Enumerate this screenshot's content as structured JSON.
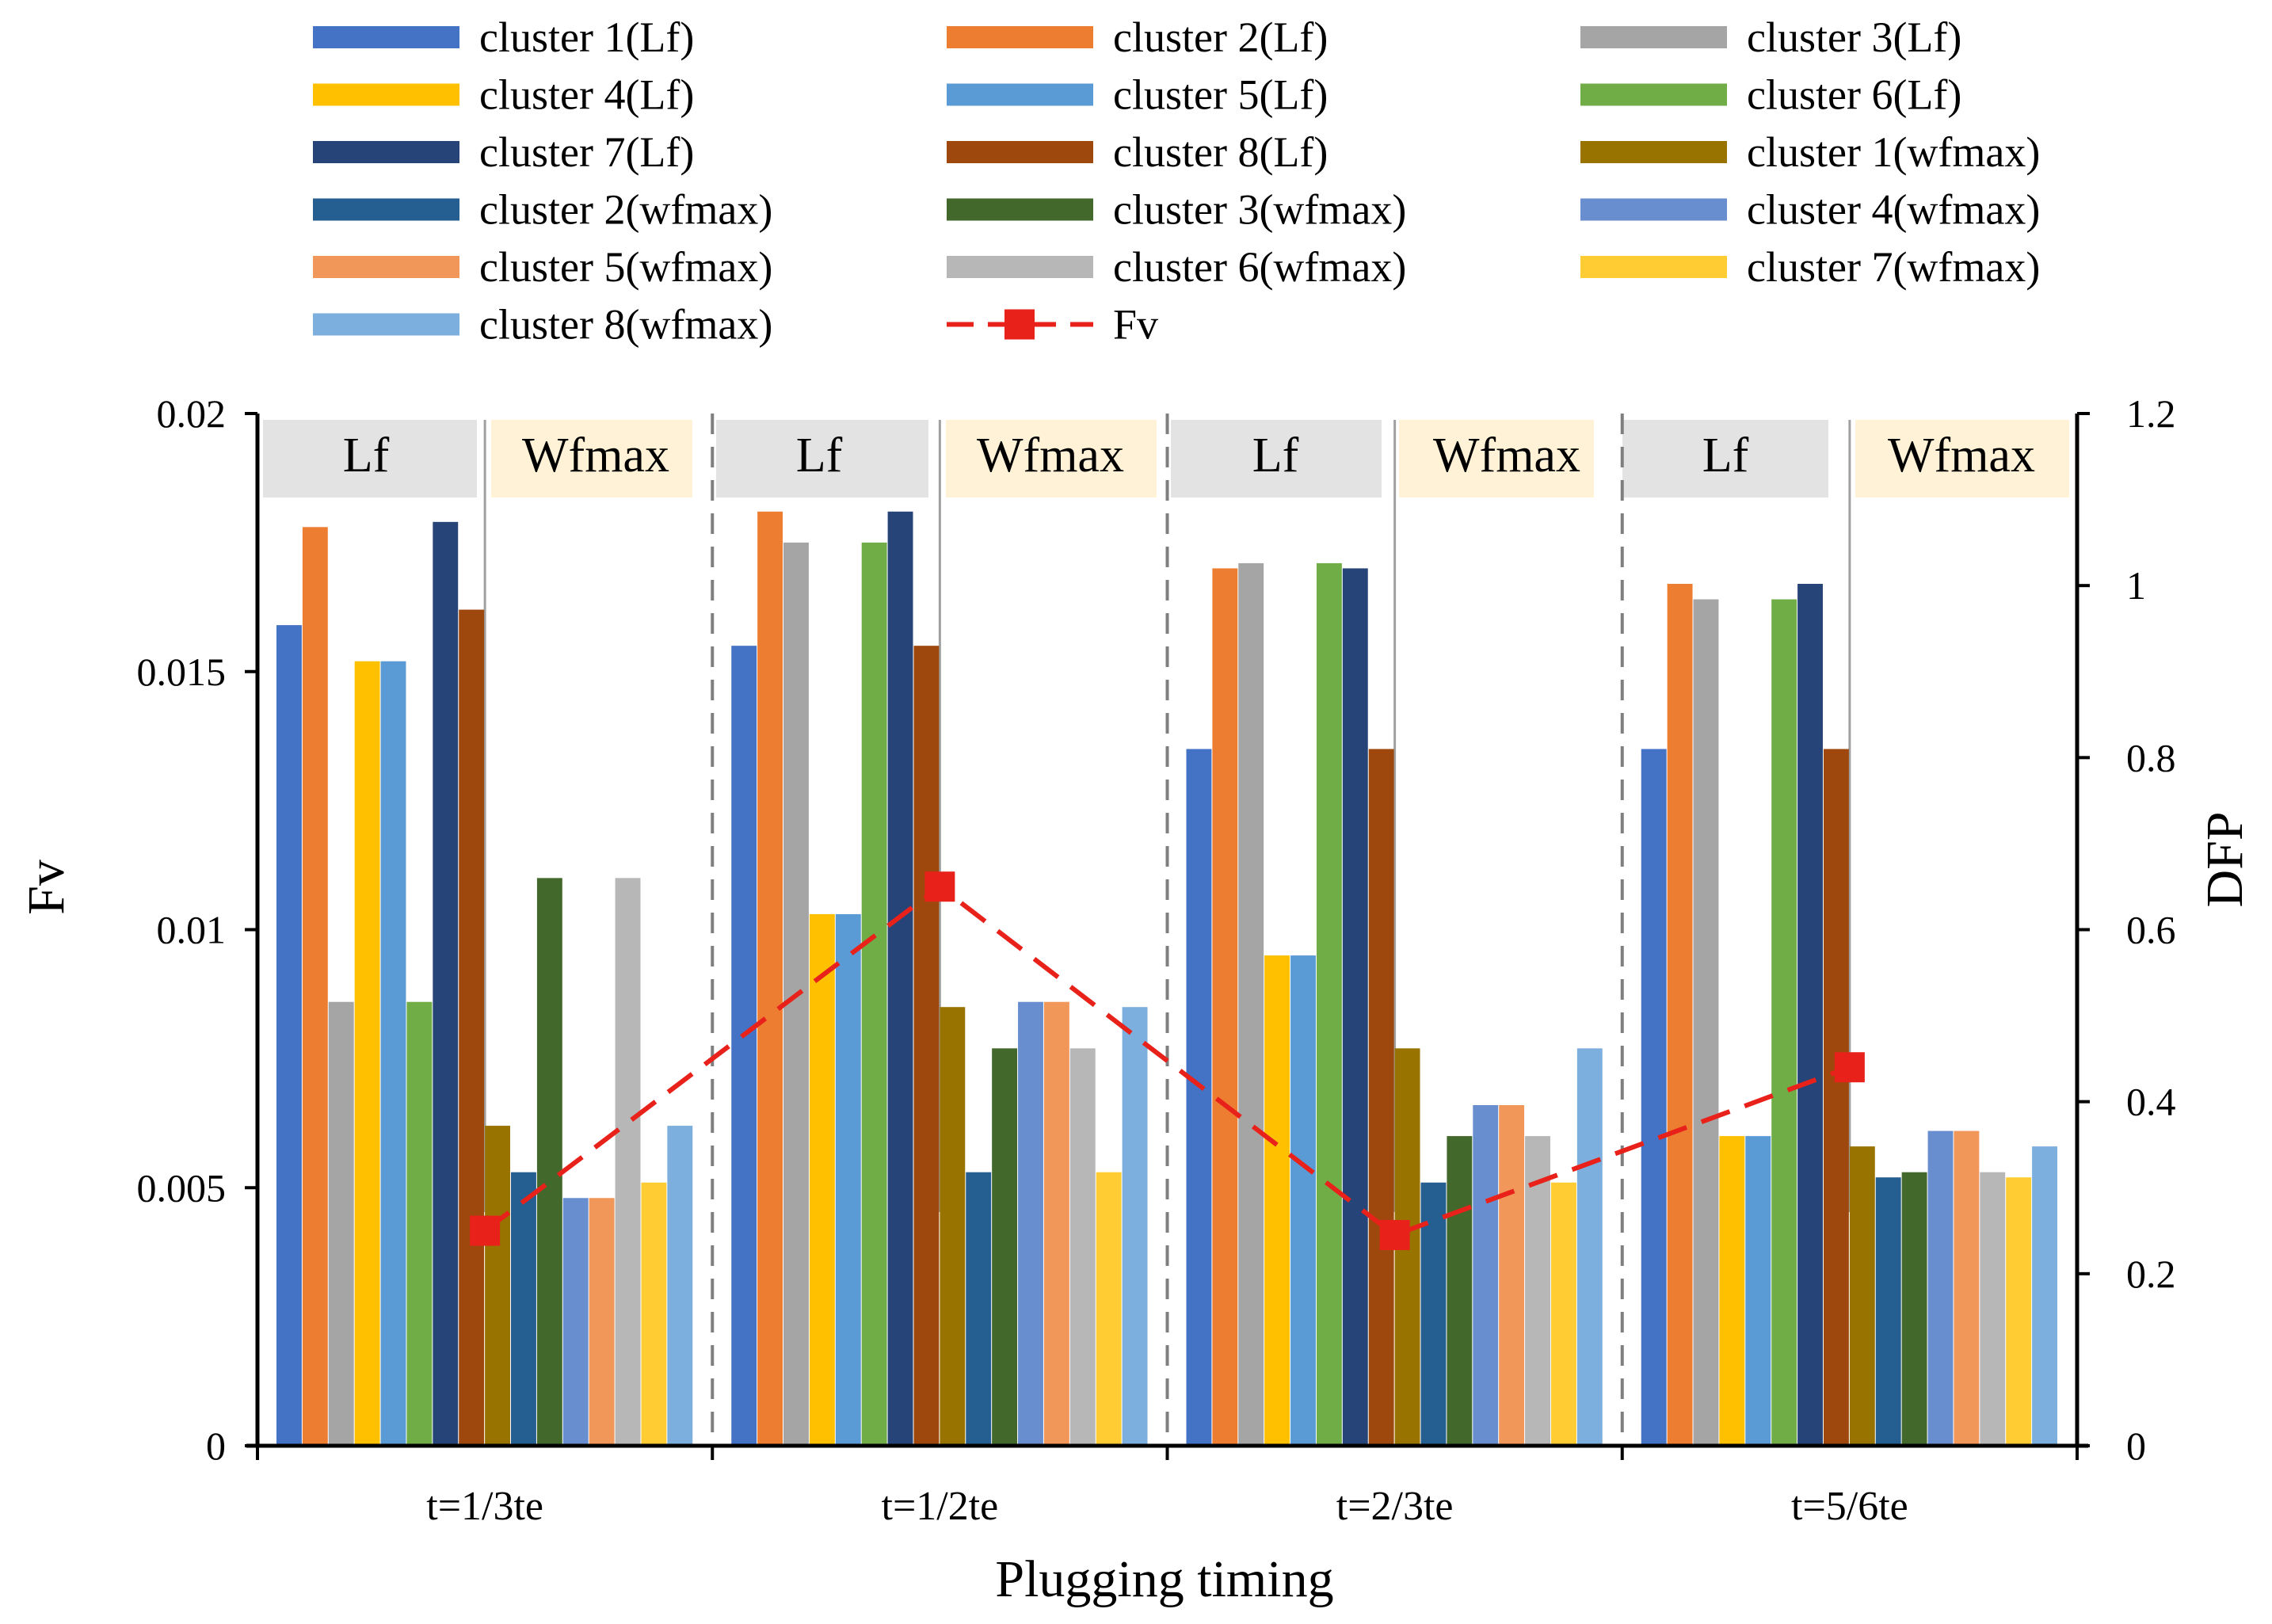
{
  "chart_data": {
    "type": "bar",
    "xlabel": "Plugging timing",
    "ylabel_left": "Fv",
    "ylabel_right": "DFP",
    "ylim_left": [
      0,
      0.02
    ],
    "ylim_right": [
      0,
      1.2
    ],
    "yticks_left": [
      "0",
      "0.005",
      "0.01",
      "0.015",
      "0.02"
    ],
    "yticks_right": [
      "0",
      "0.2",
      "0.4",
      "0.6",
      "0.8",
      "1",
      "1.2"
    ],
    "categories": [
      "t=1/3te",
      "t=1/2te",
      "t=2/3te",
      "t=5/6te"
    ],
    "region_labels": {
      "lf": "Lf",
      "wfmax": "Wfmax"
    },
    "series": [
      {
        "name": "cluster 1(Lf)",
        "color": "#4472C4",
        "axis": "left",
        "values": [
          0.0159,
          0.0155,
          0.0135,
          0.0135
        ]
      },
      {
        "name": "cluster 2(Lf)",
        "color": "#ED7D31",
        "axis": "left",
        "values": [
          0.0178,
          0.0181,
          0.017,
          0.0167
        ]
      },
      {
        "name": "cluster 3(Lf)",
        "color": "#A5A5A5",
        "axis": "left",
        "values": [
          0.0086,
          0.0175,
          0.0171,
          0.0164
        ]
      },
      {
        "name": "cluster 4(Lf)",
        "color": "#FFC000",
        "axis": "left",
        "values": [
          0.0152,
          0.0103,
          0.0095,
          0.006
        ]
      },
      {
        "name": "cluster 5(Lf)",
        "color": "#5B9BD5",
        "axis": "left",
        "values": [
          0.0152,
          0.0103,
          0.0095,
          0.006
        ]
      },
      {
        "name": "cluster 6(Lf)",
        "color": "#70AD47",
        "axis": "left",
        "values": [
          0.0086,
          0.0175,
          0.0171,
          0.0164
        ]
      },
      {
        "name": "cluster 7(Lf)",
        "color": "#264478",
        "axis": "left",
        "values": [
          0.0179,
          0.0181,
          0.017,
          0.0167
        ]
      },
      {
        "name": "cluster 8(Lf)",
        "color": "#9E480E",
        "axis": "left",
        "values": [
          0.0162,
          0.0155,
          0.0135,
          0.0135
        ]
      },
      {
        "name": "cluster 1(wfmax)",
        "color": "#997300",
        "axis": "left",
        "values": [
          0.0062,
          0.0085,
          0.0077,
          0.0058
        ]
      },
      {
        "name": "cluster 2(wfmax)",
        "color": "#255E91",
        "axis": "left",
        "values": [
          0.0053,
          0.0053,
          0.0051,
          0.0052
        ]
      },
      {
        "name": "cluster 3(wfmax)",
        "color": "#43682B",
        "axis": "left",
        "values": [
          0.011,
          0.0077,
          0.006,
          0.0053
        ]
      },
      {
        "name": "cluster 4(wfmax)",
        "color": "#698ED0",
        "axis": "left",
        "values": [
          0.0048,
          0.0086,
          0.0066,
          0.0061
        ]
      },
      {
        "name": "cluster 5(wfmax)",
        "color": "#F1975A",
        "axis": "left",
        "values": [
          0.0048,
          0.0086,
          0.0066,
          0.0061
        ]
      },
      {
        "name": "cluster 6(wfmax)",
        "color": "#B7B7B7",
        "axis": "left",
        "values": [
          0.011,
          0.0077,
          0.006,
          0.0053
        ]
      },
      {
        "name": "cluster 7(wfmax)",
        "color": "#FFCD33",
        "axis": "left",
        "values": [
          0.0051,
          0.0053,
          0.0051,
          0.0052
        ]
      },
      {
        "name": "cluster 8(wfmax)",
        "color": "#7CAFDD",
        "axis": "left",
        "values": [
          0.0062,
          0.0085,
          0.0077,
          0.0058
        ]
      }
    ],
    "line": {
      "name": "Fv",
      "color": "#E8221A",
      "axis": "right",
      "values": [
        0.25,
        0.65,
        0.245,
        0.44
      ]
    }
  }
}
